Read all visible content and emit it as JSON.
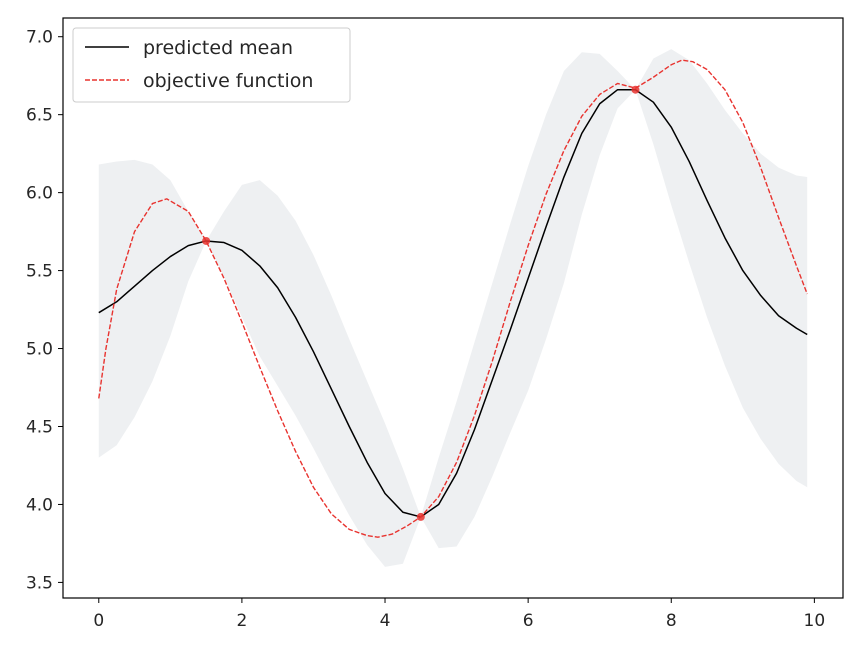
{
  "chart_data": {
    "type": "line",
    "title": "",
    "xlabel": "",
    "ylabel": "",
    "xlim": [
      -0.5,
      10.4
    ],
    "ylim": [
      3.4,
      7.12
    ],
    "x_ticks": [
      0,
      2,
      4,
      6,
      8,
      10
    ],
    "x_tick_labels": [
      "0",
      "2",
      "4",
      "6",
      "8",
      "10"
    ],
    "y_ticks": [
      3.5,
      4.0,
      4.5,
      5.0,
      5.5,
      6.0,
      6.5,
      7.0
    ],
    "y_tick_labels": [
      "3.5",
      "4.0",
      "4.5",
      "5.0",
      "5.5",
      "6.0",
      "6.5",
      "7.0"
    ],
    "grid": false,
    "legend": {
      "position": "top-left",
      "entries": [
        {
          "label": "predicted mean",
          "color": "#000000",
          "style": "solid"
        },
        {
          "label": "objective function",
          "color": "#e8332f",
          "style": "dashed"
        }
      ]
    },
    "series": [
      {
        "name": "predicted mean",
        "color": "#000000",
        "style": "solid",
        "x": [
          0.0,
          0.25,
          0.5,
          0.75,
          1.0,
          1.25,
          1.5,
          1.75,
          2.0,
          2.25,
          2.5,
          2.75,
          3.0,
          3.25,
          3.5,
          3.75,
          4.0,
          4.25,
          4.5,
          4.75,
          5.0,
          5.25,
          5.5,
          5.75,
          6.0,
          6.25,
          6.5,
          6.75,
          7.0,
          7.25,
          7.5,
          7.75,
          8.0,
          8.25,
          8.5,
          8.75,
          9.0,
          9.25,
          9.5,
          9.75,
          9.9
        ],
        "y": [
          5.23,
          5.3,
          5.4,
          5.5,
          5.59,
          5.66,
          5.69,
          5.68,
          5.63,
          5.53,
          5.39,
          5.2,
          4.98,
          4.74,
          4.5,
          4.27,
          4.07,
          3.95,
          3.92,
          4.0,
          4.2,
          4.48,
          4.8,
          5.12,
          5.45,
          5.78,
          6.1,
          6.38,
          6.57,
          6.66,
          6.66,
          6.58,
          6.42,
          6.2,
          5.95,
          5.71,
          5.5,
          5.34,
          5.21,
          5.13,
          5.09
        ]
      },
      {
        "name": "objective function",
        "color": "#e8332f",
        "style": "dashed",
        "x": [
          0.0,
          0.1,
          0.25,
          0.5,
          0.75,
          0.95,
          1.25,
          1.5,
          1.75,
          2.0,
          2.25,
          2.5,
          2.75,
          3.0,
          3.25,
          3.5,
          3.75,
          3.9,
          4.1,
          4.3,
          4.5,
          4.75,
          5.0,
          5.25,
          5.5,
          5.75,
          6.0,
          6.25,
          6.5,
          6.75,
          7.0,
          7.25,
          7.5,
          7.75,
          8.0,
          8.15,
          8.3,
          8.5,
          8.75,
          9.0,
          9.25,
          9.5,
          9.75,
          9.9
        ],
        "y": [
          4.68,
          5.0,
          5.38,
          5.75,
          5.93,
          5.96,
          5.88,
          5.69,
          5.45,
          5.17,
          4.88,
          4.6,
          4.34,
          4.11,
          3.94,
          3.84,
          3.8,
          3.79,
          3.81,
          3.86,
          3.92,
          4.05,
          4.27,
          4.57,
          4.92,
          5.3,
          5.66,
          5.99,
          6.27,
          6.49,
          6.63,
          6.7,
          6.67,
          6.74,
          6.82,
          6.85,
          6.84,
          6.79,
          6.66,
          6.45,
          6.16,
          5.84,
          5.53,
          5.35
        ]
      }
    ],
    "confidence_band": {
      "color": "#eef0f2",
      "x": [
        0.0,
        0.25,
        0.5,
        0.75,
        1.0,
        1.25,
        1.5,
        1.75,
        2.0,
        2.25,
        2.5,
        2.75,
        3.0,
        3.25,
        3.5,
        3.75,
        4.0,
        4.25,
        4.5,
        4.75,
        5.0,
        5.25,
        5.5,
        5.75,
        6.0,
        6.25,
        6.5,
        6.75,
        7.0,
        7.25,
        7.5,
        7.75,
        8.0,
        8.25,
        8.5,
        8.75,
        9.0,
        9.25,
        9.5,
        9.75,
        9.9
      ],
      "upper": [
        6.18,
        6.2,
        6.21,
        6.18,
        6.08,
        5.88,
        5.69,
        5.88,
        6.05,
        6.08,
        5.98,
        5.82,
        5.6,
        5.34,
        5.06,
        4.79,
        4.52,
        4.23,
        3.92,
        4.3,
        4.66,
        5.04,
        5.42,
        5.8,
        6.17,
        6.5,
        6.78,
        6.9,
        6.89,
        6.78,
        6.66,
        6.86,
        6.92,
        6.85,
        6.7,
        6.53,
        6.38,
        6.25,
        6.16,
        6.11,
        6.1
      ],
      "lower": [
        4.3,
        4.38,
        4.56,
        4.79,
        5.08,
        5.43,
        5.69,
        5.46,
        5.2,
        4.95,
        4.76,
        4.57,
        4.36,
        4.14,
        3.93,
        3.74,
        3.6,
        3.62,
        3.92,
        3.72,
        3.73,
        3.92,
        4.18,
        4.46,
        4.73,
        5.06,
        5.42,
        5.86,
        6.24,
        6.54,
        6.66,
        6.31,
        5.92,
        5.55,
        5.2,
        4.89,
        4.62,
        4.42,
        4.26,
        4.15,
        4.11
      ]
    },
    "observations": {
      "color": "#e8332f",
      "x": [
        1.5,
        4.5,
        7.5
      ],
      "y": [
        5.69,
        3.92,
        6.66
      ]
    }
  }
}
